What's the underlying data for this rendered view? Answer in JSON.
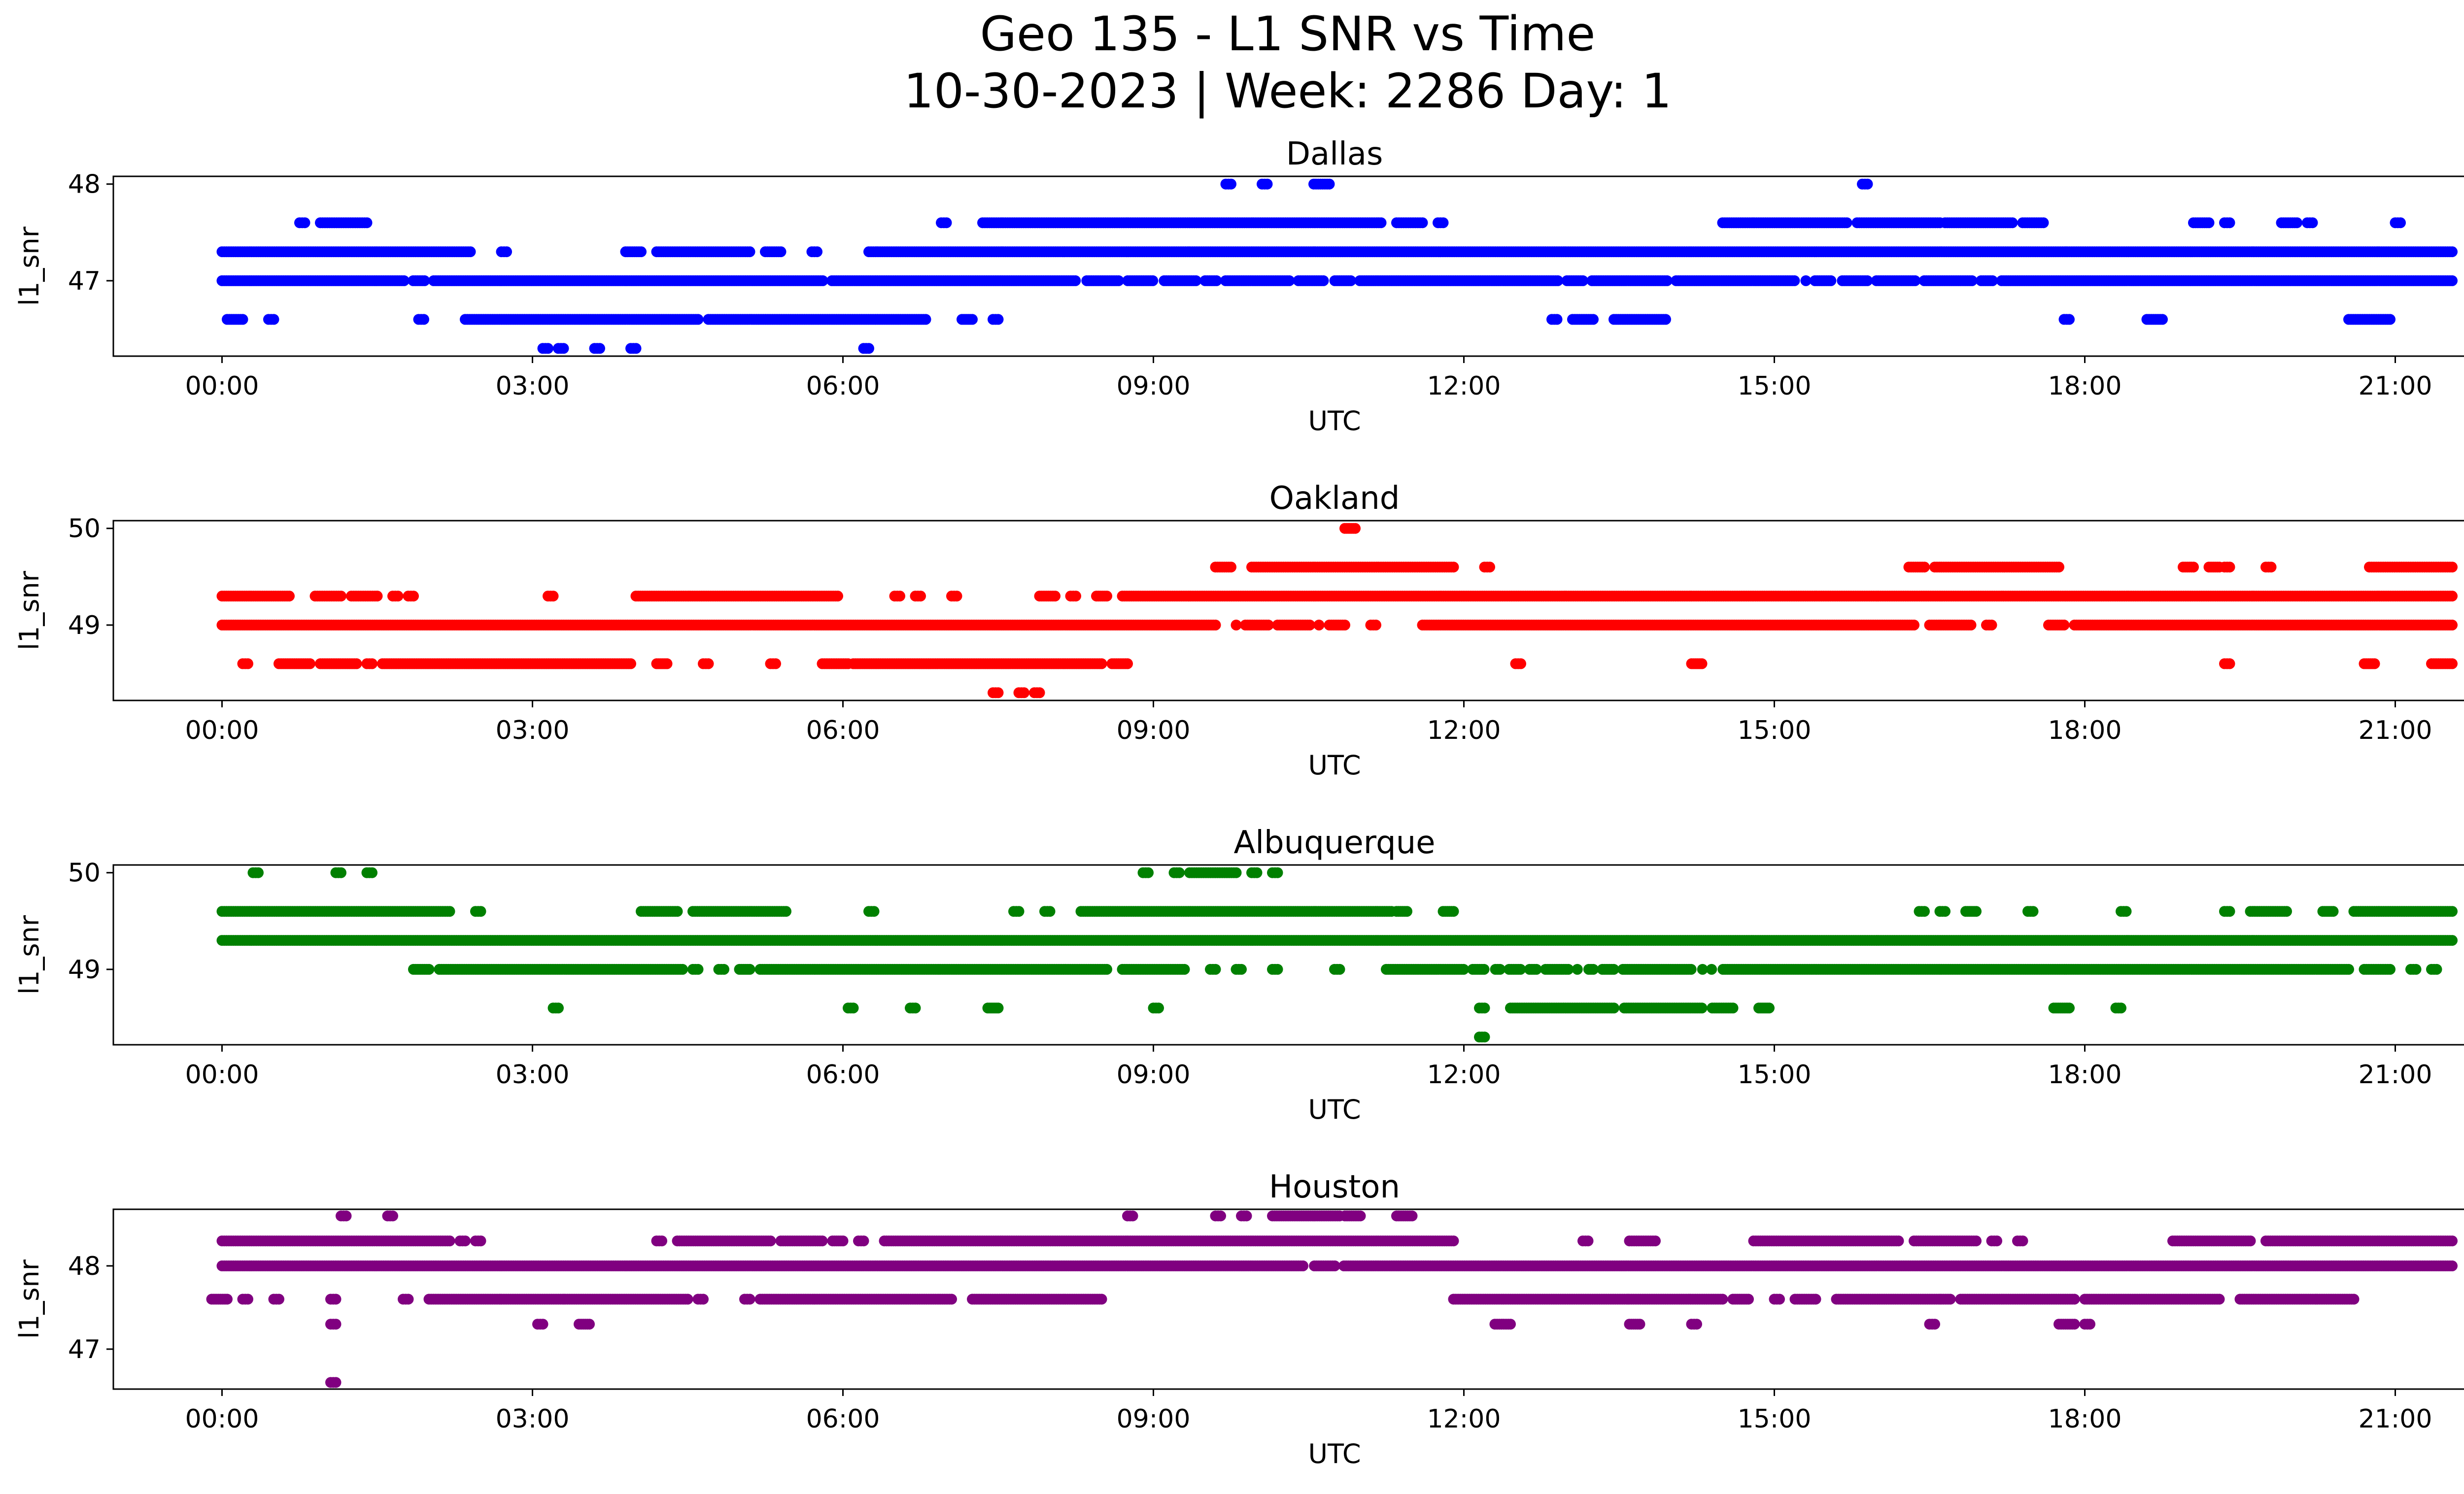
{
  "figure": {
    "title_line1": "Geo 135 - L1 SNR vs Time",
    "title_line2": "10-30-2023 | Week: 2286 Day: 1"
  },
  "chart_data": [
    {
      "type": "scatter",
      "title": "Dallas",
      "xlabel": "UTC",
      "ylabel": "l1_snr",
      "color": "#0000ff",
      "x_ticks": [
        "00:00",
        "03:00",
        "06:00",
        "09:00",
        "12:00",
        "15:00",
        "18:00",
        "21:00"
      ],
      "y_ticks": [
        47,
        48
      ],
      "xlim": [
        -1.05,
        22.55
      ],
      "ylim": [
        46.22,
        48.08
      ],
      "bands": [
        {
          "y": 47.0,
          "segments": [
            [
              0.0,
              21.55
            ]
          ]
        },
        {
          "y": 47.3,
          "segments": [
            [
              0.0,
              2.4
            ],
            [
              2.7,
              2.75
            ],
            [
              3.9,
              4.05
            ],
            [
              4.2,
              5.1
            ],
            [
              5.25,
              5.4
            ],
            [
              5.7,
              5.75
            ],
            [
              6.25,
              21.55
            ]
          ]
        },
        {
          "y": 47.6,
          "segments": [
            [
              0.75,
              0.8
            ],
            [
              0.95,
              1.4
            ],
            [
              6.95,
              7.0
            ],
            [
              7.35,
              11.2
            ],
            [
              11.35,
              11.6
            ],
            [
              11.75,
              11.8
            ],
            [
              14.5,
              15.7
            ],
            [
              15.8,
              16.6
            ],
            [
              16.65,
              17.3
            ],
            [
              17.4,
              17.6
            ],
            [
              19.05,
              19.2
            ],
            [
              19.35,
              19.4
            ],
            [
              19.9,
              20.05
            ],
            [
              20.15,
              20.2
            ],
            [
              21.0,
              21.05
            ]
          ]
        },
        {
          "y": 46.6,
          "segments": [
            [
              0.05,
              0.2
            ],
            [
              0.45,
              0.5
            ],
            [
              1.9,
              1.95
            ],
            [
              2.35,
              4.6
            ],
            [
              4.7,
              6.8
            ],
            [
              7.15,
              7.25
            ],
            [
              7.45,
              7.5
            ],
            [
              12.85,
              12.9
            ],
            [
              13.05,
              13.25
            ],
            [
              13.45,
              13.95
            ],
            [
              17.8,
              17.85
            ],
            [
              18.6,
              18.75
            ],
            [
              20.55,
              20.95
            ]
          ]
        },
        {
          "y": 46.3,
          "segments": [
            [
              3.1,
              3.15
            ],
            [
              3.25,
              3.3
            ],
            [
              3.6,
              3.65
            ],
            [
              3.95,
              4.0
            ],
            [
              6.2,
              6.25
            ]
          ]
        },
        {
          "y": 48.0,
          "segments": [
            [
              9.7,
              9.75
            ],
            [
              10.05,
              10.1
            ],
            [
              10.55,
              10.7
            ],
            [
              15.85,
              15.9
            ]
          ]
        }
      ],
      "gaps": [
        {
          "y": 47.0,
          "x": [
            1.8,
            2.0,
            5.85,
            8.3,
            8.7,
            9.05,
            9.45,
            9.65,
            10.35,
            10.7,
            10.95,
            12.95,
            13.2,
            14.0,
            15.25,
            15.35,
            15.6,
            15.95,
            16.4,
            16.95,
            17.15
          ]
        }
      ]
    },
    {
      "type": "scatter",
      "title": "Oakland",
      "xlabel": "UTC",
      "ylabel": "l1_snr",
      "color": "#ff0000",
      "x_ticks": [
        "00:00",
        "03:00",
        "06:00",
        "09:00",
        "12:00",
        "15:00",
        "18:00",
        "21:00"
      ],
      "y_ticks": [
        49,
        50
      ],
      "xlim": [
        -1.05,
        22.55
      ],
      "ylim": [
        48.22,
        50.08
      ],
      "bands": [
        {
          "y": 49.0,
          "segments": [
            [
              0.0,
              9.6
            ],
            [
              9.8,
              10.6
            ],
            [
              10.7,
              10.85
            ],
            [
              11.1,
              11.15
            ],
            [
              11.6,
              16.35
            ],
            [
              16.5,
              16.9
            ],
            [
              17.05,
              17.1
            ],
            [
              17.65,
              17.8
            ],
            [
              17.9,
              21.55
            ]
          ]
        },
        {
          "y": 49.3,
          "segments": [
            [
              0.0,
              0.65
            ],
            [
              0.9,
              1.15
            ],
            [
              1.25,
              1.5
            ],
            [
              1.65,
              1.7
            ],
            [
              1.8,
              1.85
            ],
            [
              3.15,
              3.2
            ],
            [
              4.0,
              5.95
            ],
            [
              6.5,
              6.55
            ],
            [
              6.7,
              6.75
            ],
            [
              7.05,
              7.1
            ],
            [
              7.9,
              8.05
            ],
            [
              8.2,
              8.25
            ],
            [
              8.45,
              8.55
            ],
            [
              8.7,
              21.55
            ]
          ]
        },
        {
          "y": 49.6,
          "segments": [
            [
              9.6,
              9.75
            ],
            [
              9.95,
              11.9
            ],
            [
              12.2,
              12.25
            ],
            [
              16.3,
              16.45
            ],
            [
              16.55,
              17.75
            ],
            [
              18.95,
              19.05
            ],
            [
              19.2,
              19.3
            ],
            [
              19.35,
              19.4
            ],
            [
              19.75,
              19.8
            ],
            [
              20.75,
              21.55
            ]
          ]
        },
        {
          "y": 48.6,
          "segments": [
            [
              0.2,
              0.25
            ],
            [
              0.55,
              0.85
            ],
            [
              0.95,
              1.3
            ],
            [
              1.4,
              1.45
            ],
            [
              1.55,
              3.95
            ],
            [
              4.2,
              4.3
            ],
            [
              4.65,
              4.7
            ],
            [
              5.3,
              5.35
            ],
            [
              5.8,
              6.05
            ],
            [
              6.1,
              8.5
            ],
            [
              8.6,
              8.75
            ],
            [
              12.5,
              12.55
            ],
            [
              14.2,
              14.3
            ],
            [
              19.35,
              19.4
            ],
            [
              20.7,
              20.8
            ],
            [
              21.35,
              21.55
            ]
          ]
        },
        {
          "y": 48.3,
          "segments": [
            [
              7.45,
              7.5
            ],
            [
              7.7,
              7.75
            ],
            [
              7.85,
              7.9
            ]
          ]
        },
        {
          "y": 50.0,
          "segments": [
            [
              10.85,
              10.95
            ]
          ]
        }
      ],
      "gaps": [
        {
          "y": 49.0,
          "x": [
            9.65,
            9.75,
            9.85,
            10.15,
            10.55,
            11.35,
            16.45,
            17.15,
            17.85
          ]
        }
      ]
    },
    {
      "type": "scatter",
      "title": "Albuquerque",
      "xlabel": "UTC",
      "ylabel": "l1_snr",
      "color": "#008000",
      "x_ticks": [
        "00:00",
        "03:00",
        "06:00",
        "09:00",
        "12:00",
        "15:00",
        "18:00",
        "21:00"
      ],
      "y_ticks": [
        49,
        50
      ],
      "xlim": [
        -1.05,
        22.55
      ],
      "ylim": [
        48.22,
        50.08
      ],
      "bands": [
        {
          "y": 49.3,
          "segments": [
            [
              0.0,
              21.55
            ]
          ]
        },
        {
          "y": 49.6,
          "segments": [
            [
              0.0,
              2.2
            ],
            [
              2.45,
              2.5
            ],
            [
              4.05,
              4.4
            ],
            [
              4.55,
              5.45
            ],
            [
              6.25,
              6.3
            ],
            [
              7.65,
              7.7
            ],
            [
              7.95,
              8.0
            ],
            [
              8.3,
              11.3
            ],
            [
              11.35,
              11.45
            ],
            [
              11.8,
              11.9
            ],
            [
              16.4,
              16.45
            ],
            [
              16.6,
              16.65
            ],
            [
              16.85,
              16.95
            ],
            [
              17.45,
              17.5
            ],
            [
              18.35,
              18.4
            ],
            [
              19.35,
              19.4
            ],
            [
              19.6,
              19.95
            ],
            [
              20.3,
              20.4
            ],
            [
              20.6,
              21.55
            ]
          ]
        },
        {
          "y": 49.0,
          "segments": [
            [
              1.85,
              2.0
            ],
            [
              2.1,
              4.45
            ],
            [
              4.55,
              4.6
            ],
            [
              4.8,
              4.85
            ],
            [
              5.0,
              5.1
            ],
            [
              5.2,
              8.55
            ],
            [
              8.7,
              9.3
            ],
            [
              9.55,
              9.6
            ],
            [
              9.8,
              9.85
            ],
            [
              10.15,
              10.2
            ],
            [
              10.75,
              10.8
            ],
            [
              11.25,
              20.55
            ],
            [
              20.7,
              20.95
            ],
            [
              21.15,
              21.2
            ],
            [
              21.35,
              21.4
            ]
          ]
        },
        {
          "y": 48.6,
          "segments": [
            [
              3.2,
              3.25
            ],
            [
              6.05,
              6.1
            ],
            [
              6.65,
              6.7
            ],
            [
              7.4,
              7.5
            ],
            [
              9.0,
              9.05
            ],
            [
              12.15,
              12.2
            ],
            [
              12.45,
              13.45
            ],
            [
              13.55,
              14.3
            ],
            [
              14.4,
              14.6
            ],
            [
              14.85,
              14.95
            ],
            [
              17.7,
              17.85
            ],
            [
              18.3,
              18.35
            ]
          ]
        },
        {
          "y": 48.3,
          "segments": [
            [
              12.15,
              12.2
            ]
          ]
        },
        {
          "y": 50.0,
          "segments": [
            [
              0.3,
              0.35
            ],
            [
              1.1,
              1.15
            ],
            [
              1.4,
              1.45
            ],
            [
              8.9,
              8.95
            ],
            [
              9.2,
              9.25
            ],
            [
              9.35,
              9.8
            ],
            [
              9.95,
              10.0
            ],
            [
              10.15,
              10.2
            ]
          ]
        }
      ],
      "gaps": [
        {
          "y": 49.0,
          "x": [
            12.05,
            12.25,
            12.4,
            12.6,
            12.75,
            13.05,
            13.15,
            13.3,
            13.5,
            14.25,
            14.35,
            14.45
          ]
        }
      ]
    },
    {
      "type": "scatter",
      "title": "Houston",
      "xlabel": "UTC",
      "ylabel": "l1_snr",
      "color": "#800080",
      "x_ticks": [
        "00:00",
        "03:00",
        "06:00",
        "09:00",
        "12:00",
        "15:00",
        "18:00",
        "21:00"
      ],
      "y_ticks": [
        47,
        48
      ],
      "xlim": [
        -1.05,
        22.55
      ],
      "ylim": [
        46.52,
        48.68
      ],
      "bands": [
        {
          "y": 48.0,
          "segments": [
            [
              0.0,
              21.55
            ]
          ]
        },
        {
          "y": 48.3,
          "segments": [
            [
              0.0,
              2.2
            ],
            [
              2.3,
              2.35
            ],
            [
              2.45,
              2.5
            ],
            [
              4.2,
              4.25
            ],
            [
              4.4,
              5.3
            ],
            [
              5.4,
              5.8
            ],
            [
              5.9,
              6.0
            ],
            [
              6.15,
              6.2
            ],
            [
              6.4,
              11.9
            ],
            [
              13.15,
              13.2
            ],
            [
              13.6,
              13.85
            ],
            [
              14.8,
              16.2
            ],
            [
              16.35,
              16.95
            ],
            [
              17.1,
              17.15
            ],
            [
              17.35,
              17.4
            ],
            [
              18.85,
              19.6
            ],
            [
              19.75,
              21.55
            ]
          ]
        },
        {
          "y": 47.6,
          "segments": [
            [
              -0.1,
              0.05
            ],
            [
              0.2,
              0.25
            ],
            [
              0.5,
              0.55
            ],
            [
              1.05,
              1.1
            ],
            [
              1.75,
              1.8
            ],
            [
              2.0,
              4.5
            ],
            [
              4.6,
              4.65
            ],
            [
              5.05,
              5.1
            ],
            [
              5.2,
              7.05
            ],
            [
              7.25,
              8.5
            ],
            [
              11.9,
              14.5
            ],
            [
              14.6,
              14.75
            ],
            [
              15.0,
              15.05
            ],
            [
              15.2,
              15.4
            ],
            [
              15.6,
              16.7
            ],
            [
              16.8,
              17.9
            ],
            [
              18.0,
              19.3
            ],
            [
              19.5,
              20.6
            ]
          ]
        },
        {
          "y": 47.3,
          "segments": [
            [
              1.05,
              1.1
            ],
            [
              3.05,
              3.1
            ],
            [
              3.45,
              3.55
            ],
            [
              12.3,
              12.45
            ],
            [
              13.6,
              13.7
            ],
            [
              14.2,
              14.25
            ],
            [
              16.5,
              16.55
            ],
            [
              17.75,
              17.9
            ],
            [
              18.0,
              18.05
            ]
          ]
        },
        {
          "y": 46.6,
          "segments": [
            [
              1.05,
              1.1
            ]
          ]
        },
        {
          "y": 48.6,
          "segments": [
            [
              1.15,
              1.2
            ],
            [
              1.6,
              1.65
            ],
            [
              8.75,
              8.8
            ],
            [
              9.6,
              9.65
            ],
            [
              9.85,
              9.9
            ],
            [
              10.15,
              10.8
            ],
            [
              10.85,
              11.0
            ],
            [
              11.35,
              11.5
            ]
          ]
        }
      ],
      "gaps": [
        {
          "y": 48.0,
          "x": [
            10.5,
            10.8
          ]
        }
      ]
    }
  ]
}
